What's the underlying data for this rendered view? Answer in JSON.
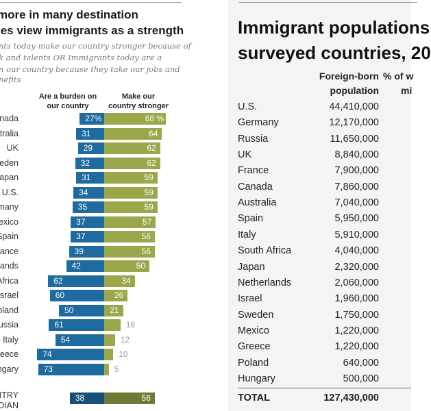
{
  "left_chart": {
    "title_lines": [
      "more in many destination",
      "ies view immigrants as a strength"
    ],
    "subtitle_lines": [
      "nts today make our country stronger because of",
      "k and talents OR Immigrants today are a",
      "n our country because they take our jobs and",
      "nefits"
    ],
    "chart_data": {
      "type": "bar",
      "orientation": "horizontal-diverging",
      "categories": [
        "nada",
        "tralia",
        "UK",
        "eden",
        "apan",
        "U.S.",
        "many",
        "exico",
        "Spain",
        "rance",
        "lands",
        "Africa",
        "srael",
        "oland",
        "ussia",
        "Italy",
        "reece",
        "ngary"
      ],
      "series": [
        {
          "name": "Are a burden on our country",
          "color": "#1f6a9e",
          "values": [
            27,
            31,
            29,
            32,
            31,
            34,
            35,
            37,
            37,
            39,
            42,
            62,
            60,
            50,
            61,
            54,
            74,
            73
          ]
        },
        {
          "name": "Make our country stronger",
          "color": "#9ba74a",
          "values": [
            68,
            64,
            62,
            62,
            59,
            59,
            59,
            57,
            56,
            56,
            50,
            34,
            26,
            21,
            18,
            12,
            10,
            5
          ]
        }
      ],
      "value_suffix_first_row": "%",
      "median": {
        "label_lines": [
          "NTRY",
          "EDIAN"
        ],
        "burden": 38,
        "stronger": 56,
        "colors": [
          "#174f78",
          "#707a35"
        ]
      }
    },
    "col_headers": {
      "burden": [
        "Are a burden on",
        "our country"
      ],
      "stronger": [
        "Make our",
        "country stronger"
      ]
    }
  },
  "right_table": {
    "title_lines": [
      "Immigrant populations",
      "surveyed countries, 20"
    ],
    "headers": {
      "foreign_born": [
        "Foreign-born",
        "population"
      ],
      "percent": [
        "% of w",
        "mi"
      ]
    },
    "rows": [
      {
        "country": "U.S.",
        "population": "44,410,000"
      },
      {
        "country": "Germany",
        "population": "12,170,000"
      },
      {
        "country": "Russia",
        "population": "11,650,000"
      },
      {
        "country": "UK",
        "population": "8,840,000"
      },
      {
        "country": "France",
        "population": "7,900,000"
      },
      {
        "country": "Canada",
        "population": "7,860,000"
      },
      {
        "country": "Australia",
        "population": "7,040,000"
      },
      {
        "country": "Spain",
        "population": "5,950,000"
      },
      {
        "country": "Italy",
        "population": "5,910,000"
      },
      {
        "country": "South Africa",
        "population": "4,040,000"
      },
      {
        "country": "Japan",
        "population": "2,320,000"
      },
      {
        "country": "Netherlands",
        "population": "2,060,000"
      },
      {
        "country": "Israel",
        "population": "1,960,000"
      },
      {
        "country": "Sweden",
        "population": "1,750,000"
      },
      {
        "country": "Mexico",
        "population": "1,220,000"
      },
      {
        "country": "Greece",
        "population": "1,220,000"
      },
      {
        "country": "Poland",
        "population": "640,000"
      },
      {
        "country": "Hungary",
        "population": "500,000"
      }
    ],
    "total": {
      "label": "TOTAL",
      "population": "127,430,000"
    }
  }
}
